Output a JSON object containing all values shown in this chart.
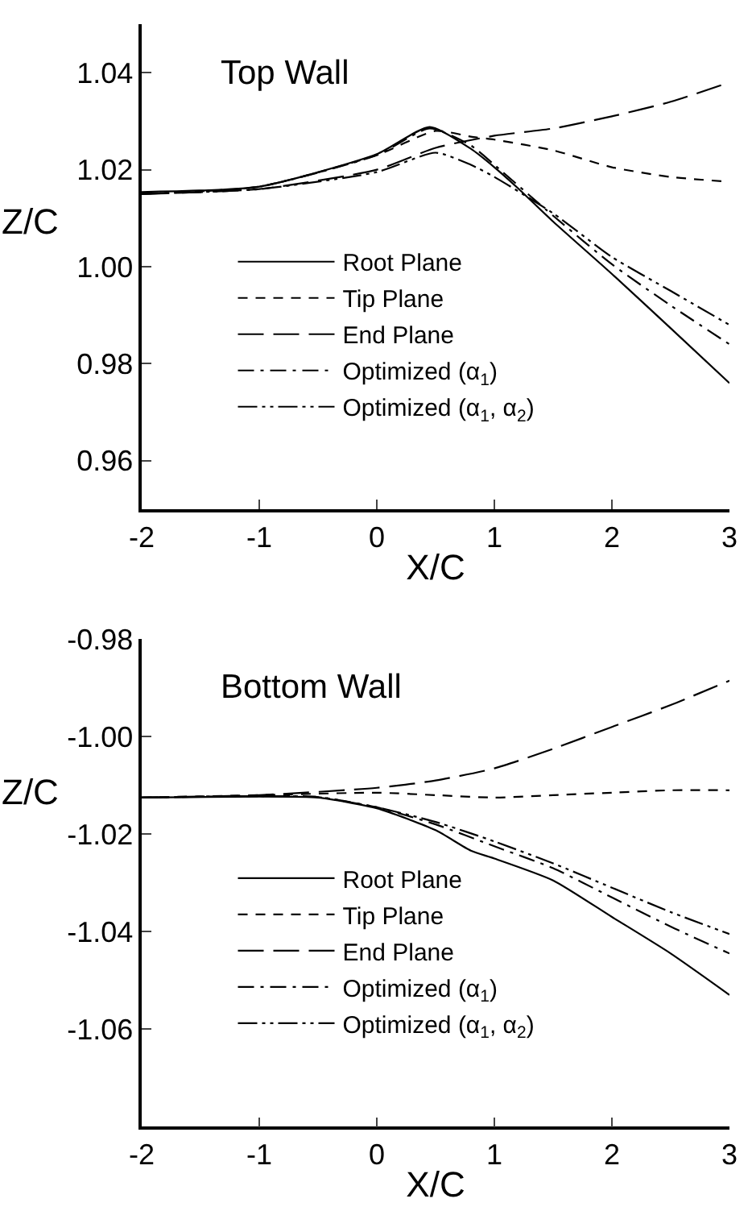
{
  "chart_data": [
    {
      "type": "line",
      "title": "Top Wall",
      "xlabel": "X/C",
      "ylabel": "Z/C",
      "xlim": [
        -2,
        3
      ],
      "xticks": [
        -2,
        -1,
        0,
        1,
        2,
        3
      ],
      "ylim": [
        0.95,
        1.05
      ],
      "yticks": [
        {
          "value": 0.96,
          "label": "0.96"
        },
        {
          "value": 0.98,
          "label": "0.98"
        },
        {
          "value": 1.0,
          "label": "1.00"
        },
        {
          "value": 1.02,
          "label": "1.02"
        },
        {
          "value": 1.04,
          "label": "1.04"
        }
      ],
      "legend": "center",
      "marker": "none",
      "series": [
        {
          "name": "Root Plane",
          "color": "#000000",
          "line_style": "solid",
          "x": [
            -2,
            -1,
            0,
            0.45,
            0.8,
            1,
            1.2,
            1.5,
            2,
            2.5,
            3
          ],
          "values": [
            1.0154,
            1.0165,
            1.0232,
            1.0288,
            1.0243,
            1.0205,
            1.0162,
            1.0093,
            0.9985,
            0.9873,
            0.976
          ]
        },
        {
          "name": "Tip Plane",
          "color": "#000000",
          "line_style": "dashed",
          "x": [
            -2,
            -1,
            0,
            0.5,
            0.8,
            1,
            1.5,
            2,
            2.5,
            3
          ],
          "values": [
            1.015,
            1.0165,
            1.023,
            1.028,
            1.0268,
            1.0262,
            1.024,
            1.0205,
            1.0185,
            1.0175
          ]
        },
        {
          "name": "End Plane",
          "color": "#000000",
          "line_style": "longdash",
          "x": [
            -2,
            -1,
            0,
            0.5,
            1,
            1.5,
            2,
            2.5,
            3
          ],
          "values": [
            1.015,
            1.016,
            1.02,
            1.0245,
            1.027,
            1.0285,
            1.031,
            1.034,
            1.038
          ]
        },
        {
          "name": "Optimized (α$_{1}$)",
          "color": "#000000",
          "line_style": "dashdot",
          "x": [
            -2,
            -1,
            0,
            0.45,
            0.8,
            1,
            1.5,
            2,
            2.5,
            3
          ],
          "values": [
            1.015,
            1.0165,
            1.023,
            1.0285,
            1.025,
            1.021,
            1.0105,
            1.0005,
            0.992,
            0.984
          ]
        },
        {
          "name": "Optimized (α$_{1}$, α$_{2}$)",
          "color": "#000000",
          "line_style": "dashdotdot",
          "x": [
            -2,
            -1,
            0,
            0.5,
            0.8,
            1,
            1.5,
            2,
            2.5,
            3
          ],
          "values": [
            1.015,
            1.016,
            1.0195,
            1.0235,
            1.021,
            1.0185,
            1.011,
            1.002,
            0.995,
            0.988
          ]
        }
      ]
    },
    {
      "type": "line",
      "title": "Bottom Wall",
      "xlabel": "X/C",
      "ylabel": "Z/C",
      "xlim": [
        -2,
        3
      ],
      "xticks": [
        -2,
        -1,
        0,
        1,
        2,
        3
      ],
      "ylim": [
        -1.08,
        -0.98
      ],
      "yticks": [
        {
          "value": -1.06,
          "label": "-1.06"
        },
        {
          "value": -1.04,
          "label": "-1.04"
        },
        {
          "value": -1.02,
          "label": "-1.02"
        },
        {
          "value": -1.0,
          "label": "-1.00"
        },
        {
          "value": -0.98,
          "label": "-0.98"
        }
      ],
      "legend": "center",
      "marker": "none",
      "series": [
        {
          "name": "Root Plane",
          "color": "#000000",
          "line_style": "solid",
          "x": [
            -2,
            -1,
            -0.5,
            0,
            0.5,
            0.8,
            1,
            1.5,
            2,
            2.5,
            3
          ],
          "values": [
            -1.0125,
            -1.0123,
            -1.0125,
            -1.0147,
            -1.0192,
            -1.0234,
            -1.025,
            -1.0295,
            -1.037,
            -1.0445,
            -1.053
          ]
        },
        {
          "name": "Tip Plane",
          "color": "#000000",
          "line_style": "dashed",
          "x": [
            -2,
            -1,
            0,
            0.5,
            1,
            1.5,
            2,
            2.5,
            3
          ],
          "values": [
            -1.0125,
            -1.012,
            -1.0115,
            -1.012,
            -1.0125,
            -1.012,
            -1.0115,
            -1.011,
            -1.011
          ]
        },
        {
          "name": "End Plane",
          "color": "#000000",
          "line_style": "longdash",
          "x": [
            -2,
            -1,
            0,
            0.5,
            1,
            1.5,
            2,
            2.5,
            3
          ],
          "values": [
            -1.0125,
            -1.012,
            -1.0105,
            -1.009,
            -1.0065,
            -1.0025,
            -0.998,
            -0.9935,
            -0.9885
          ]
        },
        {
          "name": "Optimized (α$_{1}$)",
          "color": "#000000",
          "line_style": "dashdot",
          "x": [
            -2,
            -1,
            -0.5,
            0,
            0.5,
            1,
            1.5,
            2,
            2.5,
            3
          ],
          "values": [
            -1.0125,
            -1.0122,
            -1.0124,
            -1.0145,
            -1.018,
            -1.0225,
            -1.027,
            -1.033,
            -1.039,
            -1.0445
          ]
        },
        {
          "name": "Optimized (α$_{1}$, α$_{2}$)",
          "color": "#000000",
          "line_style": "dashdotdot",
          "x": [
            -2,
            -1,
            -0.5,
            0,
            0.5,
            1,
            1.5,
            2,
            2.5,
            3
          ],
          "values": [
            -1.0125,
            -1.0122,
            -1.0124,
            -1.0145,
            -1.0175,
            -1.0215,
            -1.026,
            -1.031,
            -1.036,
            -1.0405
          ]
        }
      ]
    }
  ]
}
